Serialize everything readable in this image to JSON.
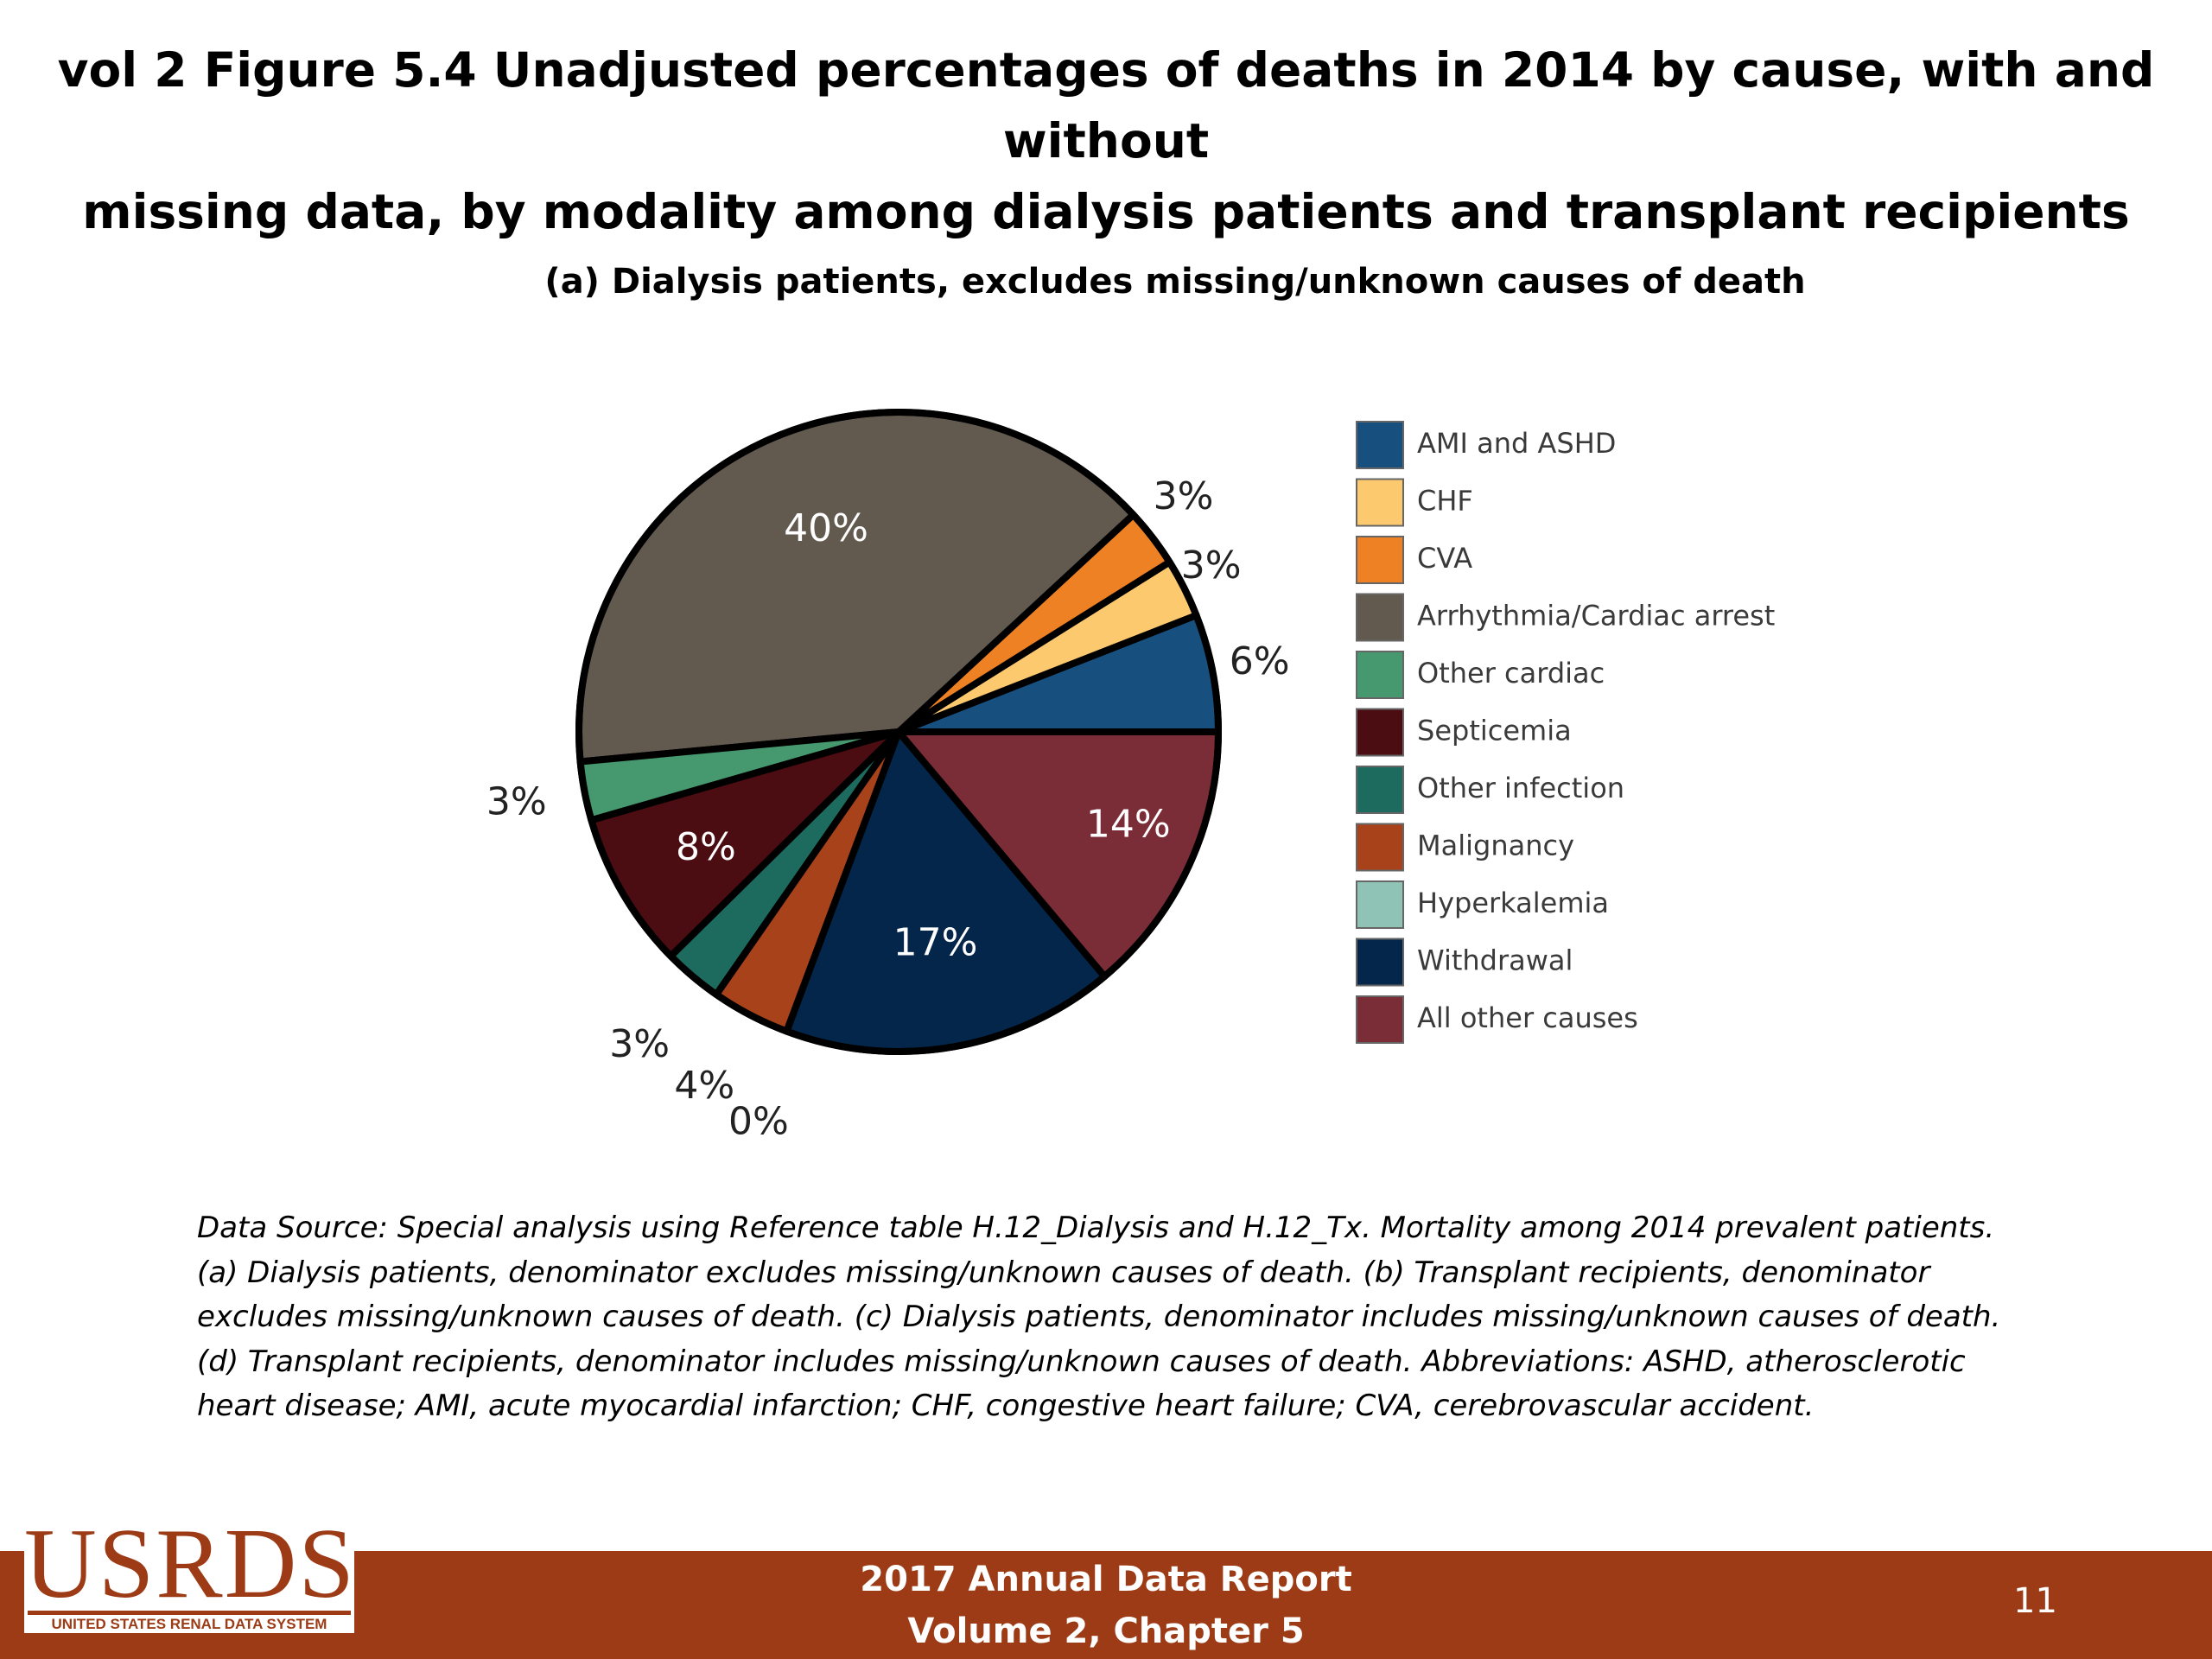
{
  "title": {
    "line1": "vol 2 Figure 5.4 Unadjusted percentages of deaths in 2014 by cause, with and without",
    "line2": "missing data, by modality among dialysis patients and transplant recipients"
  },
  "chart_data": {
    "type": "pie",
    "title": "(a) Dialysis patients, excludes missing/unknown causes of death",
    "legend_position": "right",
    "slices": [
      {
        "label": "AMI and ASHD",
        "value": 6,
        "display": "6%",
        "color": "#17507f"
      },
      {
        "label": "CHF",
        "value": 3,
        "display": "3%",
        "color": "#fdc96f"
      },
      {
        "label": "CVA",
        "value": 3,
        "display": "3%",
        "color": "#ed8123"
      },
      {
        "label": "Arrhythmia/Cardiac arrest",
        "value": 40,
        "display": "40%",
        "color": "#62594f"
      },
      {
        "label": "Other cardiac",
        "value": 3,
        "display": "3%",
        "color": "#46986f"
      },
      {
        "label": "Septicemia",
        "value": 8,
        "display": "8%",
        "color": "#4b0c12"
      },
      {
        "label": "Other infection",
        "value": 3,
        "display": "3%",
        "color": "#1d6b5f"
      },
      {
        "label": "Malignancy",
        "value": 4,
        "display": "4%",
        "color": "#a8421a"
      },
      {
        "label": "Hyperkalemia",
        "value": 0,
        "display": "0%",
        "color": "#8ec3b5"
      },
      {
        "label": "Withdrawal",
        "value": 17,
        "display": "17%",
        "color": "#03264a"
      },
      {
        "label": "All other causes",
        "value": 14,
        "display": "14%",
        "color": "#7a2c37"
      }
    ]
  },
  "note": {
    "lines": [
      "Data Source: Special analysis using Reference table H.12_Dialysis and H.12_Tx. Mortality among 2014 prevalent patients.",
      "(a) Dialysis patients, denominator excludes missing/unknown causes of death. (b) Transplant recipients, denominator",
      "excludes missing/unknown causes of death. (c) Dialysis patients, denominator includes missing/unknown causes of death.",
      "(d) Transplant recipients, denominator includes missing/unknown causes of death. Abbreviations: ASHD, atherosclerotic",
      "heart disease; AMI, acute myocardial infarction; CHF, congestive heart failure; CVA, cerebrovascular accident."
    ]
  },
  "footer": {
    "line1": "2017 Annual Data Report",
    "line2": "Volume 2, Chapter 5",
    "page_number": "11",
    "bar_color": "#9c3b15"
  },
  "logo": {
    "wordmark": "USRDS",
    "tagline": "UNITED STATES RENAL DATA SYSTEM"
  }
}
